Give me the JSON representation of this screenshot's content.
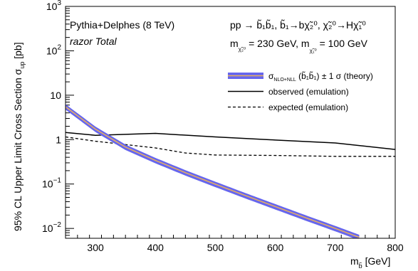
{
  "chart_data": {
    "type": "line",
    "ylog": true,
    "xlim": [
      250,
      800
    ],
    "ylim": [
      0.006,
      1000
    ],
    "x_ticks": [
      {
        "v": 300,
        "label": "300"
      },
      {
        "v": 400,
        "label": "400"
      },
      {
        "v": 500,
        "label": "500"
      },
      {
        "v": 600,
        "label": "600"
      },
      {
        "v": 700,
        "label": "700"
      },
      {
        "v": 800,
        "label": "800"
      }
    ],
    "y_ticks": [
      {
        "v": 0.01,
        "base": "10",
        "exp": "−2"
      },
      {
        "v": 0.1,
        "base": "10",
        "exp": "−1"
      },
      {
        "v": 1,
        "base": "1",
        "exp": ""
      },
      {
        "v": 10,
        "base": "10",
        "exp": ""
      },
      {
        "v": 100,
        "base": "10",
        "exp": "2"
      },
      {
        "v": 1000,
        "base": "10",
        "exp": "3"
      }
    ],
    "ylabel": {
      "main": "95% CL Upper Limit Cross Section σ",
      "sub": "up",
      "unit": " [pb]"
    },
    "xlabel": {
      "main": "m",
      "sub": "b̃",
      "unit": " [GeV]"
    },
    "annotations": {
      "generator": "Pythia+Delphes (8 TeV)",
      "analysis": "razor Total",
      "process": "pp → b̃₁b̃₁, b̃₁→bχ̃₂⁰, χ̃₂⁰→Hχ̃₁⁰",
      "mass_chi2_label": "m",
      "mass_chi2_sub": "χ̃₂⁰",
      "mass_chi2_value": " = 230 GeV, ",
      "mass_chi1_label": "m",
      "mass_chi1_sub": "χ̃₁⁰",
      "mass_chi1_value": " = 100 GeV"
    },
    "legend": {
      "position": "top-right",
      "theory": {
        "main": "σ",
        "sub": "NLO+NLL",
        "rest": " (b̃₁b̃₁) ± 1 σ (theory)"
      },
      "observed": "observed (emulation)",
      "expected": "expected (emulation)"
    },
    "series": [
      {
        "name": "observed (emulation)",
        "style": "solid",
        "color": "#000000",
        "x": [
          250,
          300,
          400,
          500,
          600,
          700,
          800
        ],
        "y": [
          1.45,
          1.25,
          1.38,
          1.15,
          0.98,
          0.84,
          0.6
        ]
      },
      {
        "name": "expected (emulation)",
        "style": "dashed",
        "color": "#000000",
        "x": [
          250,
          300,
          400,
          450,
          500,
          600,
          700,
          800
        ],
        "y": [
          1.15,
          0.92,
          0.65,
          0.5,
          0.45,
          0.44,
          0.42,
          0.42
        ]
      },
      {
        "name": "σNLO+NLL (b̃₁b̃₁) ± 1 σ (theory)",
        "style": "band",
        "color": "#6666ee",
        "center_color": "#e8b060",
        "x": [
          250,
          300,
          350,
          400,
          450,
          500,
          550,
          600,
          650,
          700,
          740
        ],
        "y": [
          5.5,
          1.72,
          0.68,
          0.34,
          0.18,
          0.099,
          0.055,
          0.031,
          0.0175,
          0.01,
          0.0063
        ],
        "rel_band": 0.14
      }
    ]
  }
}
